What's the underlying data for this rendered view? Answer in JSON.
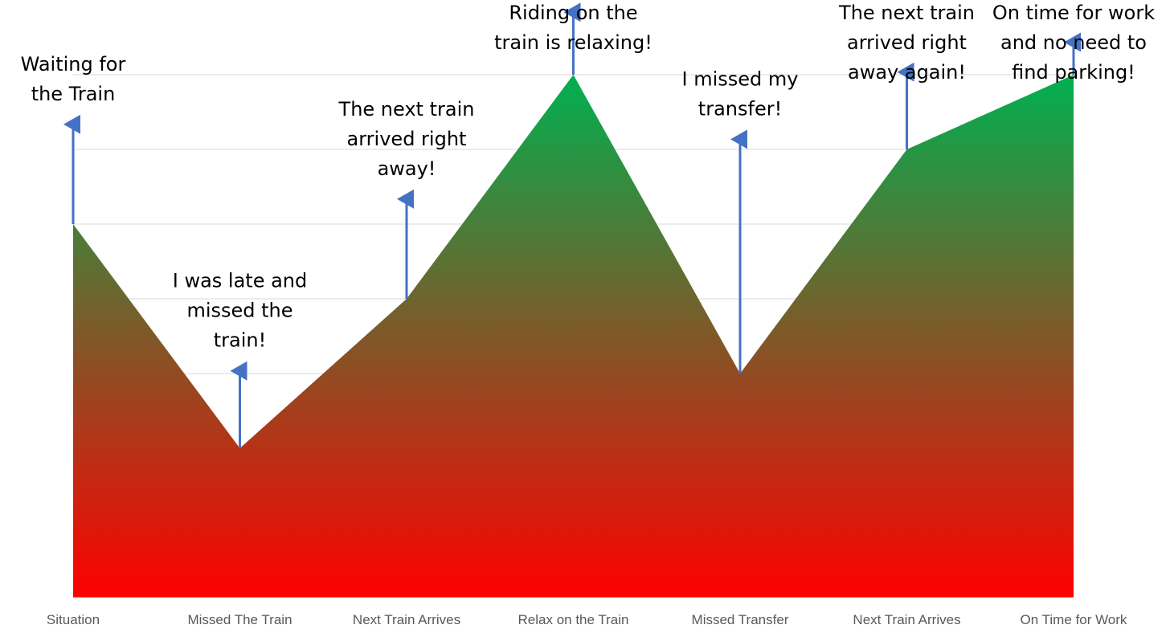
{
  "chart_data": {
    "type": "area",
    "title": "",
    "xlabel": "",
    "ylabel": "",
    "categories": [
      "Situation",
      "Missed The Train",
      "Next Train Arrives",
      "Relax on the Train",
      "Missed Transfer",
      "Next Train Arrives",
      "On Time for Work"
    ],
    "values": [
      5,
      2,
      4,
      7,
      3,
      6,
      7
    ],
    "ylim": [
      0,
      8
    ],
    "grid": true,
    "legend": "none",
    "annotations": [
      {
        "index": 0,
        "lines": [
          "Waiting for",
          "the Train"
        ],
        "arrow_to": 6.4
      },
      {
        "index": 1,
        "lines": [
          "I was late and",
          "missed the",
          "train!"
        ],
        "arrow_to": 3.1
      },
      {
        "index": 2,
        "lines": [
          "The next train",
          "arrived right",
          "away!"
        ],
        "arrow_to": 5.4
      },
      {
        "index": 3,
        "lines": [
          "Riding on the",
          "train is relaxing!"
        ],
        "arrow_to": 7.9
      },
      {
        "index": 4,
        "lines": [
          "I missed my",
          "transfer!"
        ],
        "arrow_to": 6.2
      },
      {
        "index": 5,
        "lines": [
          "The next train",
          "arrived right",
          "away again!"
        ],
        "arrow_to": 7.1
      },
      {
        "index": 6,
        "lines": [
          "On time for work",
          "and no need to",
          "find parking!"
        ],
        "arrow_to": 7.5
      }
    ],
    "colors": {
      "area_top": "#00b050",
      "area_bottom": "#ff0000",
      "arrow": "#4472c4",
      "gridline": "#d9d9d9",
      "tick_label": "#595959"
    }
  }
}
